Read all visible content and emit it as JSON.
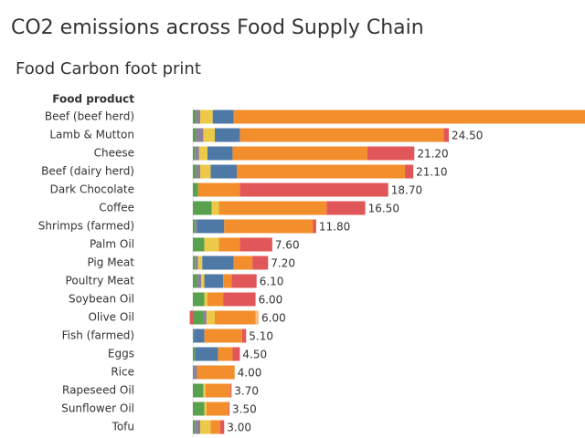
{
  "chart_data": {
    "type": "stacked-bar-horizontal",
    "title": "CO2 emissions across Food Supply Chain",
    "subtitle": "Food Carbon foot print",
    "ylabel": "Food product",
    "categories": [
      "Beef (beef herd)",
      "Lamb & Mutton",
      "Cheese",
      "Beef (dairy herd)",
      "Dark Chocolate",
      "Coffee",
      "Shrimps (farmed)",
      "Palm Oil",
      "Pig Meat",
      "Poultry Meat",
      "Soybean Oil",
      "Olive Oil",
      "Fish (farmed)",
      "Eggs",
      "Rice",
      "Rapeseed Oil",
      "Sunflower Oil",
      "Tofu"
    ],
    "series": [
      {
        "color": "#59a14f",
        "values": [
          0.3,
          0.3,
          0.2,
          0.3,
          0.5,
          1.8,
          0.2,
          1.1,
          0.2,
          0.4,
          1.1,
          1.0,
          0.1,
          0.2,
          0.1,
          1.0,
          1.1,
          0.2
        ]
      },
      {
        "color": "#8c7f9c",
        "values": [
          0.4,
          0.7,
          0.4,
          0.4,
          0,
          0,
          0.2,
          0,
          0.3,
          0.4,
          0,
          0.3,
          0,
          0,
          0.3,
          0,
          0,
          0.5
        ]
      },
      {
        "color": "#edc948",
        "values": [
          1.2,
          1.1,
          0.8,
          1.0,
          0,
          0.7,
          0,
          1.4,
          0.4,
          0.3,
          0.3,
          0.8,
          0,
          0,
          0,
          0.2,
          0.2,
          1.0
        ]
      },
      {
        "color": "#4e79a7",
        "values": [
          2.0,
          2.4,
          2.4,
          2.5,
          0,
          0,
          2.6,
          0,
          3.0,
          1.8,
          0,
          0,
          1.0,
          2.2,
          0,
          0,
          0,
          0
        ]
      },
      {
        "color": "#f28e2b",
        "values": [
          39.4,
          19.5,
          12.9,
          16.1,
          4.0,
          10.3,
          8.5,
          2.0,
          1.8,
          0.8,
          1.5,
          3.9,
          3.6,
          1.4,
          3.6,
          2.4,
          2.1,
          0.9
        ]
      },
      {
        "color": "#e15759",
        "values": [
          0,
          0.5,
          4.5,
          0.8,
          14.2,
          3.7,
          0.3,
          3.1,
          1.5,
          2.4,
          3.1,
          -0.3,
          0.4,
          0.7,
          0,
          0.1,
          0.1,
          0.4
        ]
      },
      {
        "color": "#f5be8a",
        "values": [
          0,
          0,
          0,
          0,
          0,
          0,
          0,
          0,
          0,
          0,
          0,
          0.3,
          0,
          0,
          0,
          0,
          0,
          0
        ]
      }
    ],
    "totals": [
      null,
      24.5,
      21.2,
      21.1,
      18.7,
      16.5,
      11.8,
      7.6,
      7.2,
      6.1,
      6.0,
      6.0,
      5.1,
      4.5,
      4.0,
      3.7,
      3.5,
      3.0
    ],
    "total_labels": [
      null,
      "24.50",
      "21.20",
      "21.10",
      "18.70",
      "16.50",
      "11.80",
      "7.60",
      "7.20",
      "6.10",
      "6.00",
      "6.00",
      "5.10",
      "4.50",
      "4.00",
      "3.70",
      "3.50",
      "3.00"
    ]
  }
}
